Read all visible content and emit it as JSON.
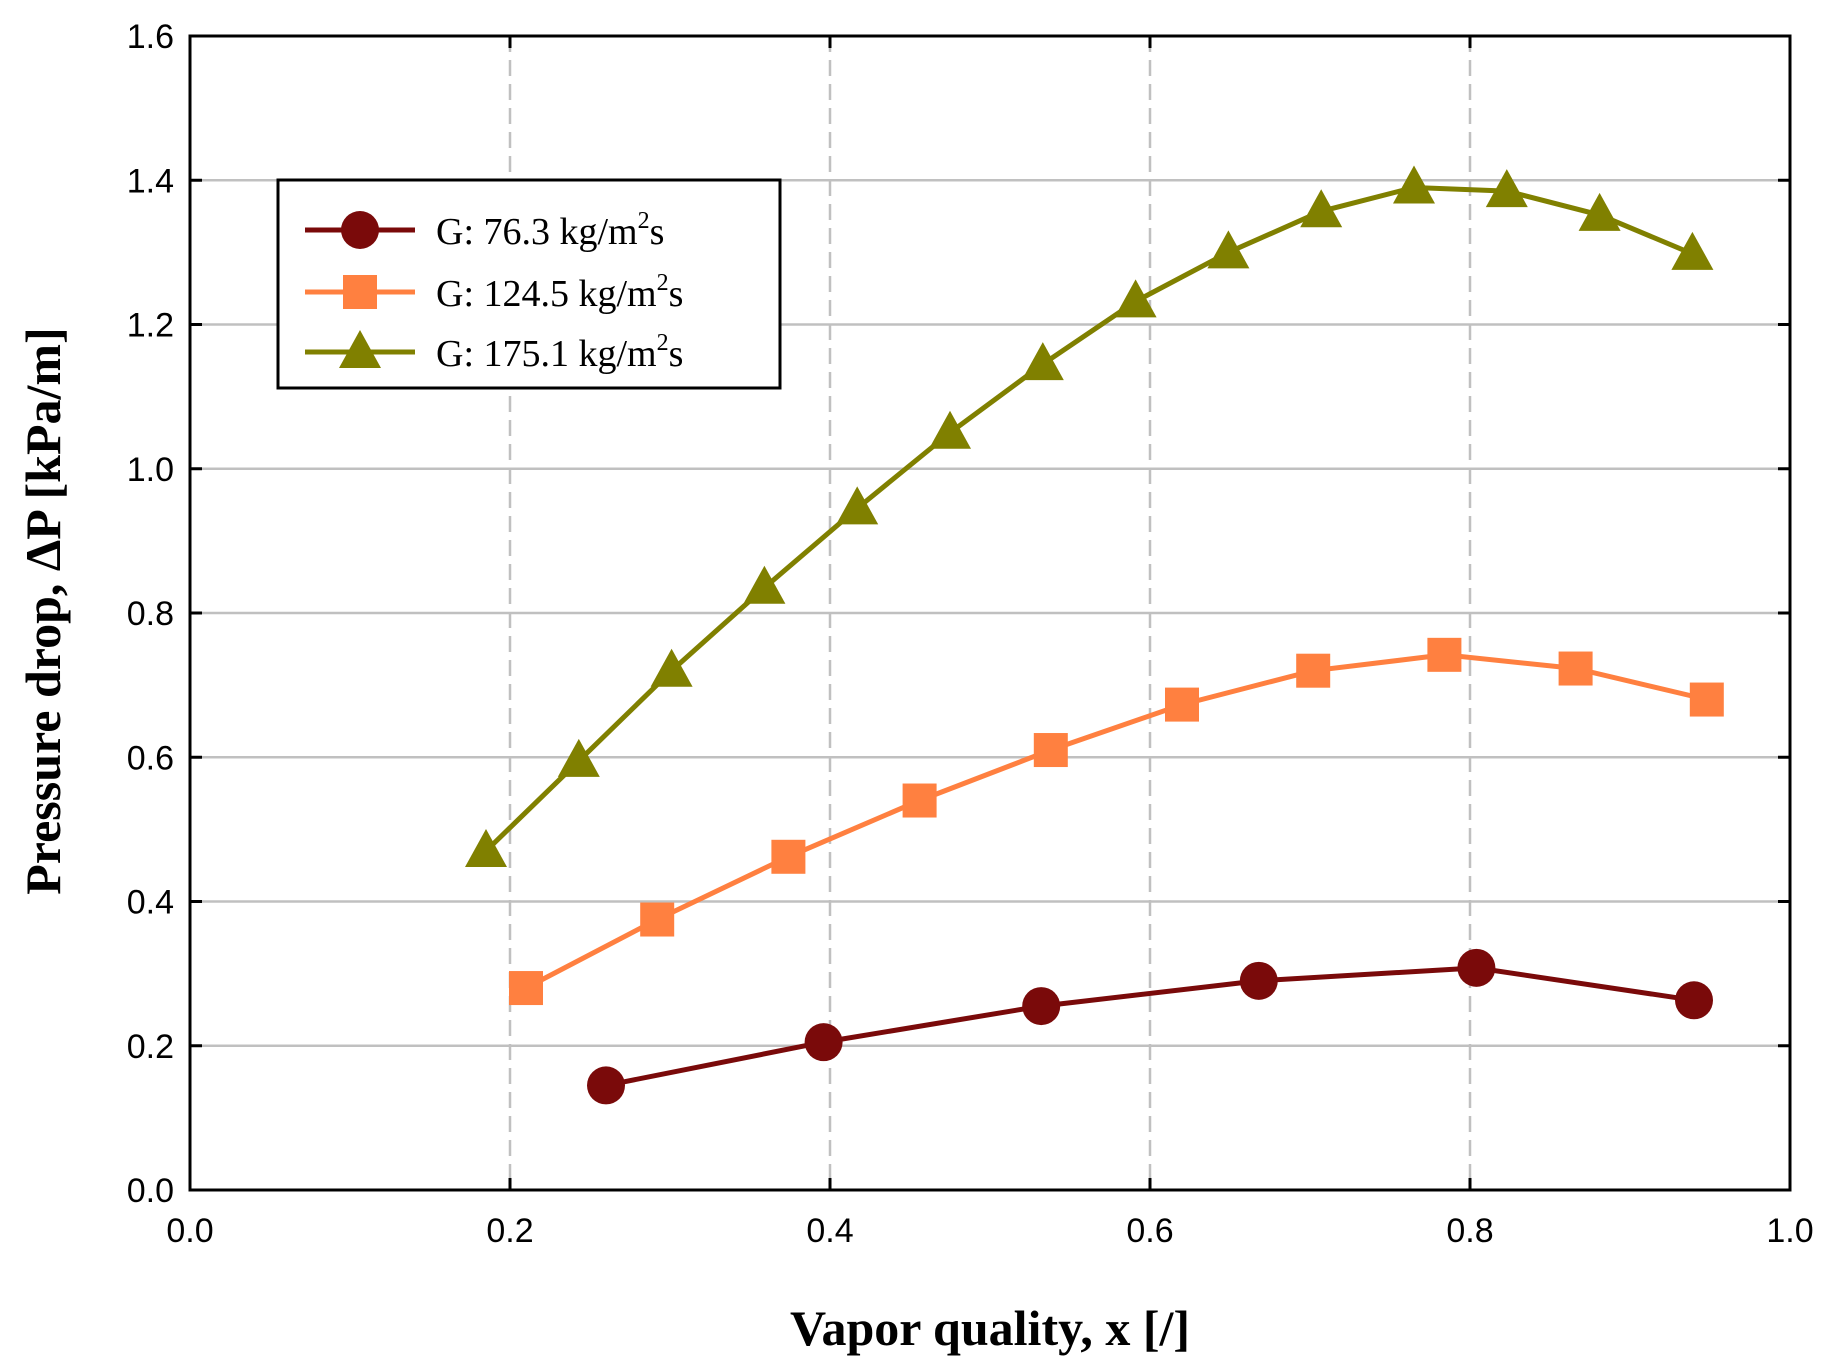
{
  "chart_data": {
    "type": "line",
    "title": "",
    "xlabel": "Vapor quality, x [/]",
    "ylabel": "Pressure drop, ΔP [kPa/m]",
    "xlim": [
      0.0,
      1.0
    ],
    "ylim": [
      0.0,
      1.6
    ],
    "x_ticks": [
      "0.0",
      "0.2",
      "0.4",
      "0.6",
      "0.8",
      "1.0"
    ],
    "y_ticks": [
      "0.0",
      "0.2",
      "0.4",
      "0.6",
      "0.8",
      "1.0",
      "1.2",
      "1.4",
      "1.6"
    ],
    "grid": true,
    "legend_position": "top-left",
    "series": [
      {
        "name": "G:   76.3 kg/m2s",
        "label_main": "G:   76.3 kg/m",
        "label_sup": "2",
        "label_end": "s",
        "marker": "circle",
        "color": "#7a0a0a",
        "x": [
          0.26,
          0.396,
          0.532,
          0.668,
          0.804,
          0.94
        ],
        "y": [
          0.145,
          0.205,
          0.255,
          0.29,
          0.308,
          0.263
        ]
      },
      {
        "name": "G: 124.5 kg/m2s",
        "label_main": "G: 124.5 kg/m",
        "label_sup": "2",
        "label_end": "s",
        "marker": "square",
        "color": "#ff8040",
        "x": [
          0.21,
          0.292,
          0.374,
          0.456,
          0.538,
          0.62,
          0.702,
          0.784,
          0.866,
          0.948
        ],
        "y": [
          0.28,
          0.375,
          0.462,
          0.54,
          0.61,
          0.673,
          0.72,
          0.742,
          0.723,
          0.68
        ]
      },
      {
        "name": "G: 175.1 kg/m2s",
        "label_main": "G: 175.1 kg/m",
        "label_sup": "2",
        "label_end": "s",
        "marker": "triangle",
        "color": "#808000",
        "x": [
          0.185,
          0.243,
          0.301,
          0.359,
          0.417,
          0.475,
          0.533,
          0.591,
          0.649,
          0.707,
          0.765,
          0.823,
          0.881,
          0.939
        ],
        "y": [
          0.47,
          0.595,
          0.72,
          0.835,
          0.945,
          1.05,
          1.145,
          1.232,
          1.3,
          1.357,
          1.39,
          1.385,
          1.352,
          1.298
        ]
      }
    ]
  }
}
